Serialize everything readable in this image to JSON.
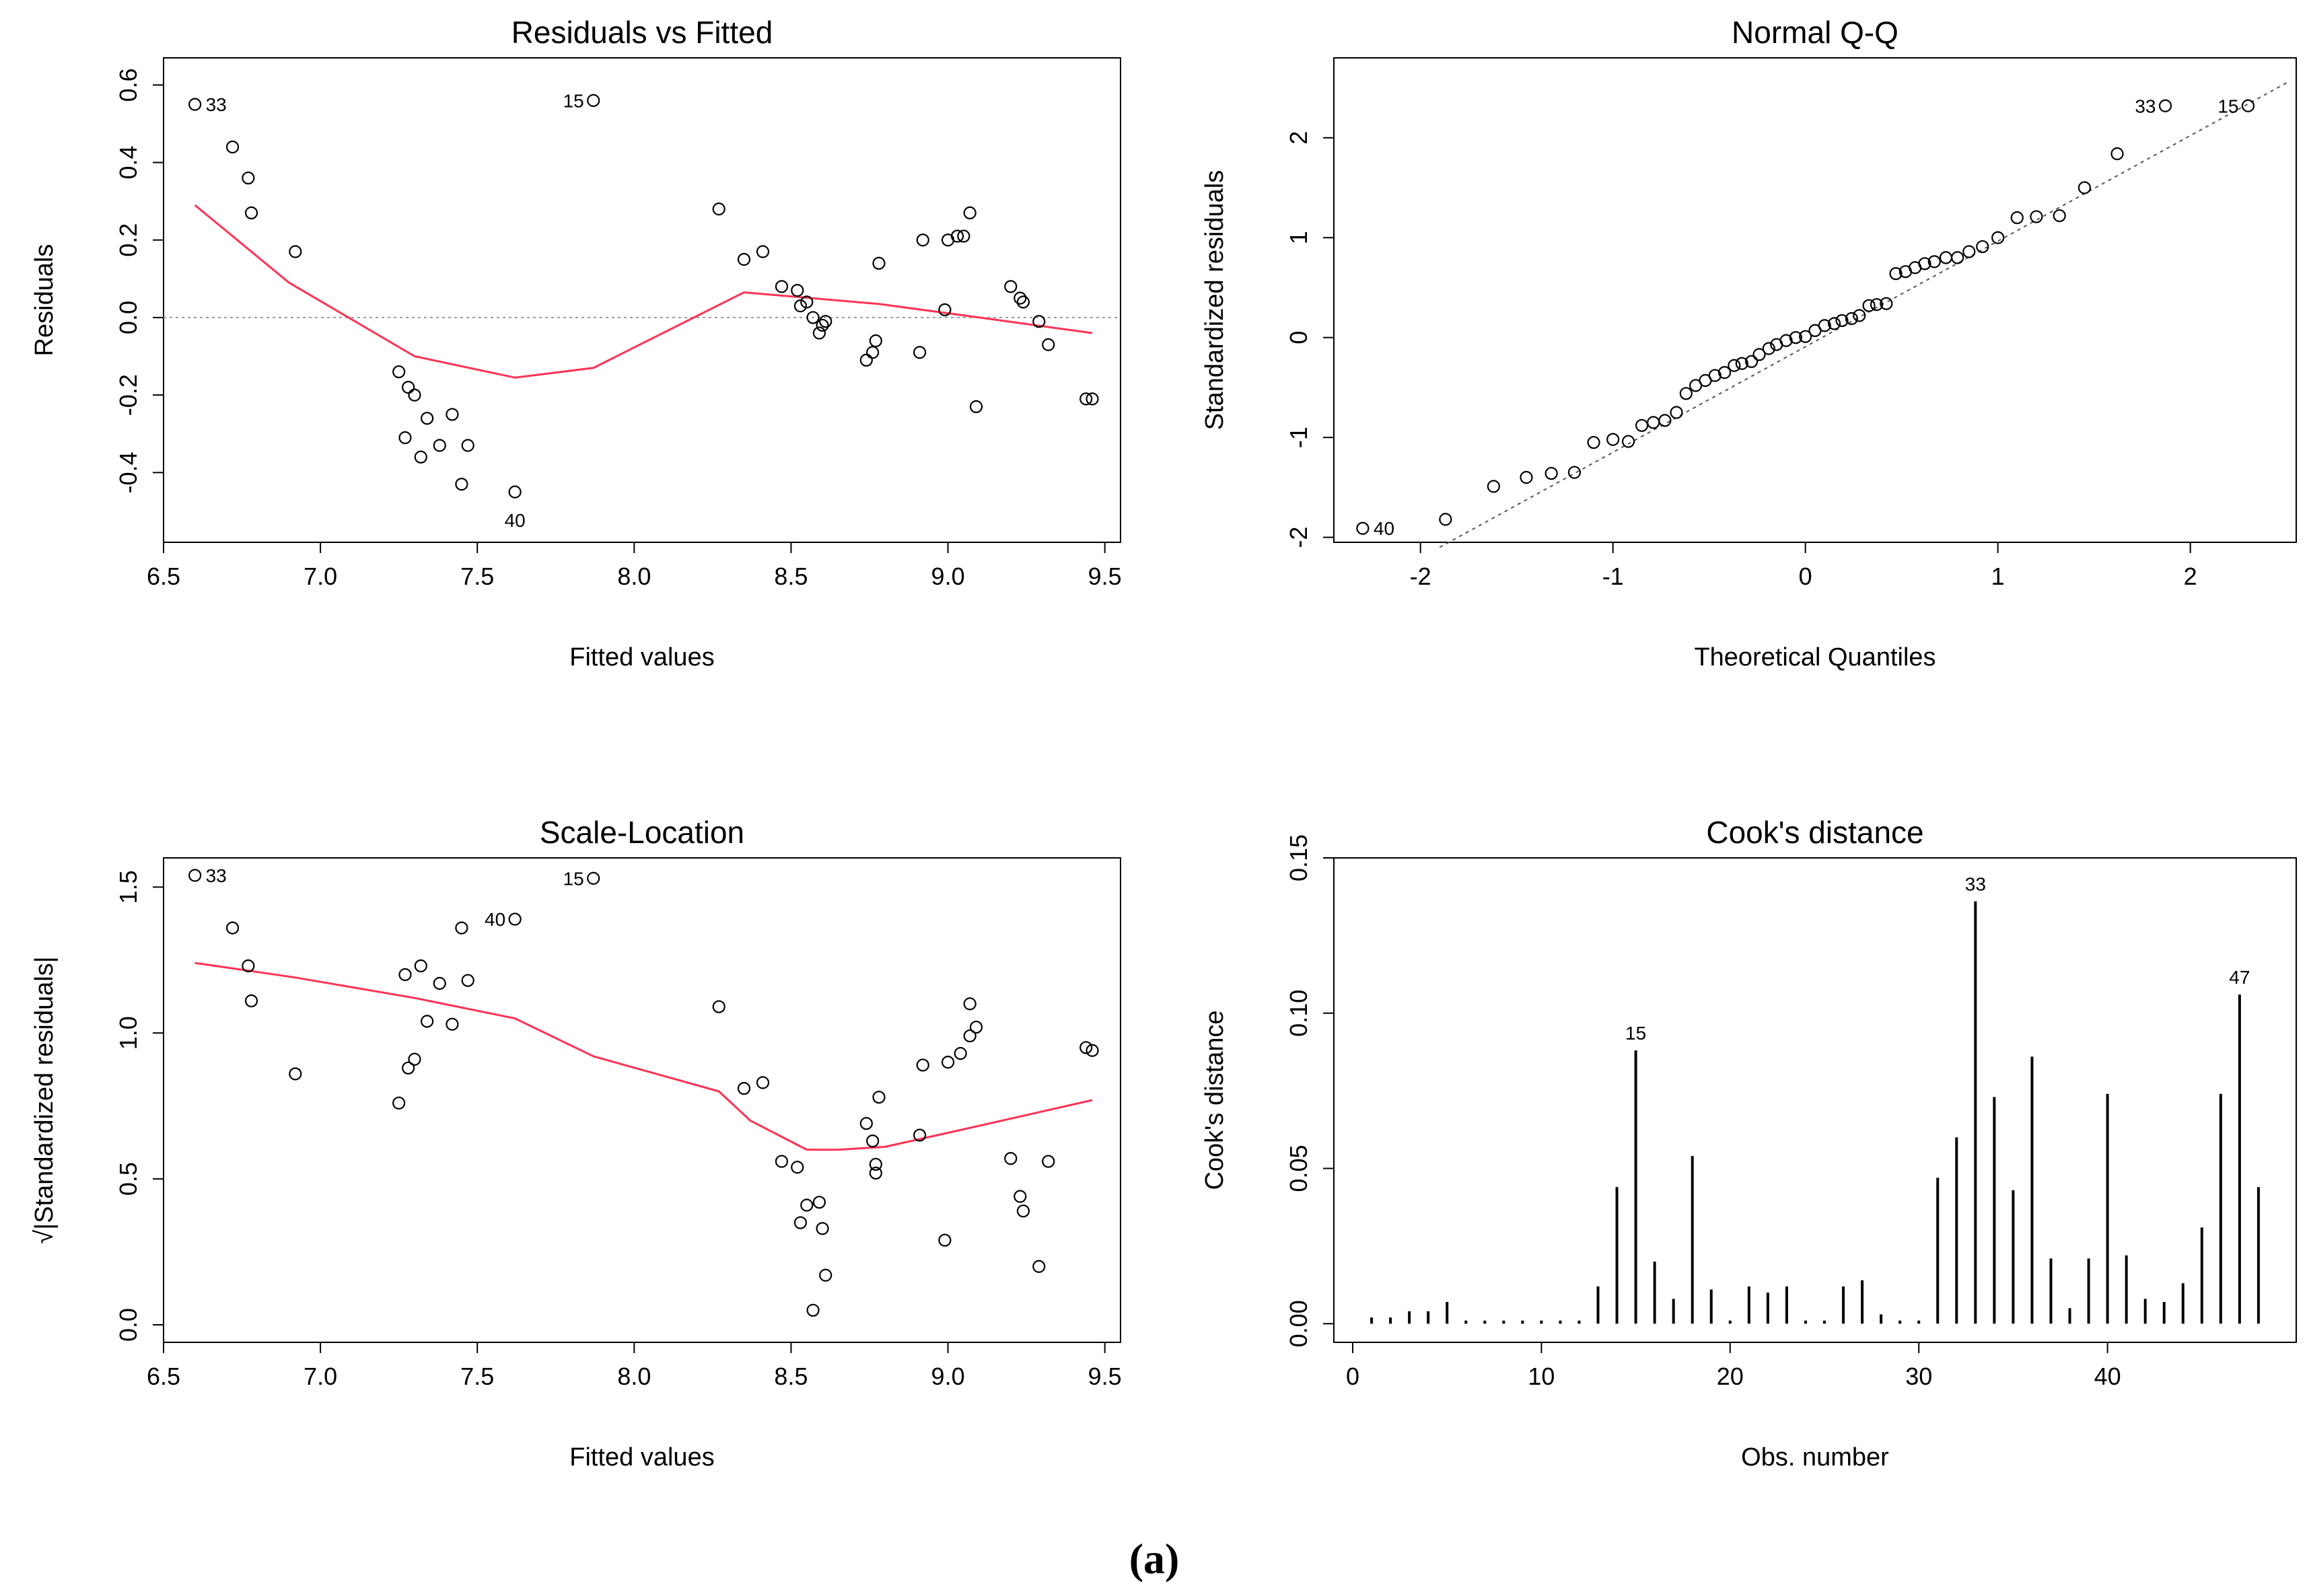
{
  "caption": "(a)",
  "chart_data": [
    {
      "type": "scatter",
      "title": "Residuals vs Fitted",
      "xlabel": "Fitted values",
      "ylabel": "Residuals",
      "xlim": [
        6.5,
        9.55
      ],
      "ylim": [
        -0.58,
        0.67
      ],
      "xticks": [
        6.5,
        7.0,
        7.5,
        8.0,
        8.5,
        9.0,
        9.5
      ],
      "xtick_labels": [
        "6.5",
        "7.0",
        "7.5",
        "8.0",
        "8.5",
        "9.0",
        "9.5"
      ],
      "yticks": [
        -0.4,
        -0.2,
        0.0,
        0.2,
        0.4,
        0.6
      ],
      "ytick_labels": [
        "-0.4",
        "-0.2",
        "0.0",
        "0.2",
        "0.4",
        "0.6"
      ],
      "reference_line": {
        "y": 0,
        "style": "dotted",
        "color": "#999999"
      },
      "points": [
        [
          6.6,
          0.55
        ],
        [
          6.72,
          0.44
        ],
        [
          6.77,
          0.36
        ],
        [
          6.78,
          0.27
        ],
        [
          6.92,
          0.17
        ],
        [
          7.25,
          -0.14
        ],
        [
          7.27,
          -0.31
        ],
        [
          7.28,
          -0.18
        ],
        [
          7.3,
          -0.2
        ],
        [
          7.32,
          -0.36
        ],
        [
          7.34,
          -0.26
        ],
        [
          7.38,
          -0.33
        ],
        [
          7.42,
          -0.25
        ],
        [
          7.45,
          -0.43
        ],
        [
          7.47,
          -0.33
        ],
        [
          7.62,
          -0.45
        ],
        [
          7.87,
          0.56
        ],
        [
          8.27,
          0.28
        ],
        [
          8.35,
          0.15
        ],
        [
          8.41,
          0.17
        ],
        [
          8.47,
          0.08
        ],
        [
          8.52,
          0.07
        ],
        [
          8.53,
          0.03
        ],
        [
          8.55,
          0.04
        ],
        [
          8.57,
          0.0
        ],
        [
          8.59,
          -0.04
        ],
        [
          8.6,
          -0.02
        ],
        [
          8.61,
          -0.01
        ],
        [
          8.74,
          -0.11
        ],
        [
          8.76,
          -0.09
        ],
        [
          8.77,
          -0.06
        ],
        [
          8.78,
          0.14
        ],
        [
          8.91,
          -0.09
        ],
        [
          8.92,
          0.2
        ],
        [
          8.99,
          0.02
        ],
        [
          9.0,
          0.2
        ],
        [
          9.03,
          0.21
        ],
        [
          9.05,
          0.21
        ],
        [
          9.07,
          0.27
        ],
        [
          9.09,
          -0.23
        ],
        [
          9.2,
          0.08
        ],
        [
          9.23,
          0.05
        ],
        [
          9.24,
          0.04
        ],
        [
          9.29,
          -0.01
        ],
        [
          9.32,
          -0.07
        ],
        [
          9.44,
          -0.21
        ],
        [
          9.46,
          -0.21
        ]
      ],
      "smoother": {
        "color": "#ff3355",
        "points": [
          [
            6.6,
            0.29
          ],
          [
            6.9,
            0.09
          ],
          [
            7.3,
            -0.1
          ],
          [
            7.62,
            -0.155
          ],
          [
            7.87,
            -0.13
          ],
          [
            8.35,
            0.065
          ],
          [
            8.78,
            0.035
          ],
          [
            9.1,
            0.0
          ],
          [
            9.46,
            -0.04
          ]
        ]
      },
      "annotations": [
        {
          "text": "33",
          "x": 6.6,
          "y": 0.55,
          "pos": "right"
        },
        {
          "text": "15",
          "x": 7.87,
          "y": 0.56,
          "pos": "left"
        },
        {
          "text": "40",
          "x": 7.62,
          "y": -0.45,
          "pos": "below"
        }
      ]
    },
    {
      "type": "scatter",
      "title": "Normal Q-Q",
      "xlabel": "Theoretical Quantiles",
      "ylabel": "Standardized residuals",
      "xlim": [
        -2.45,
        2.55
      ],
      "ylim": [
        -2.05,
        2.8
      ],
      "xticks": [
        -2,
        -1,
        0,
        1,
        2
      ],
      "xtick_labels": [
        "-2",
        "-1",
        "0",
        "1",
        "2"
      ],
      "yticks": [
        -2,
        -1,
        0,
        1,
        2
      ],
      "ytick_labels": [
        "-2",
        "-1",
        "0",
        "1",
        "2"
      ],
      "reference_line": {
        "x1": -1.9,
        "y1": -2.1,
        "x2": 2.5,
        "y2": 2.55,
        "style": "dotted",
        "color": "#555555"
      },
      "points": [
        [
          -2.3,
          -1.91
        ],
        [
          -1.87,
          -1.82
        ],
        [
          -1.62,
          -1.49
        ],
        [
          -1.45,
          -1.4
        ],
        [
          -1.32,
          -1.36
        ],
        [
          -1.2,
          -1.35
        ],
        [
          -1.1,
          -1.05
        ],
        [
          -1.0,
          -1.02
        ],
        [
          -0.92,
          -1.04
        ],
        [
          -0.85,
          -0.88
        ],
        [
          -0.79,
          -0.85
        ],
        [
          -0.73,
          -0.83
        ],
        [
          -0.67,
          -0.75
        ],
        [
          -0.62,
          -0.56
        ],
        [
          -0.57,
          -0.48
        ],
        [
          -0.52,
          -0.43
        ],
        [
          -0.47,
          -0.38
        ],
        [
          -0.42,
          -0.35
        ],
        [
          -0.37,
          -0.28
        ],
        [
          -0.33,
          -0.26
        ],
        [
          -0.28,
          -0.24
        ],
        [
          -0.24,
          -0.17
        ],
        [
          -0.19,
          -0.11
        ],
        [
          -0.15,
          -0.07
        ],
        [
          -0.1,
          -0.03
        ],
        [
          -0.05,
          0.0
        ],
        [
          0.0,
          0.01
        ],
        [
          0.05,
          0.07
        ],
        [
          0.1,
          0.12
        ],
        [
          0.15,
          0.14
        ],
        [
          0.19,
          0.17
        ],
        [
          0.24,
          0.19
        ],
        [
          0.28,
          0.22
        ],
        [
          0.33,
          0.32
        ],
        [
          0.37,
          0.33
        ],
        [
          0.42,
          0.34
        ],
        [
          0.47,
          0.64
        ],
        [
          0.52,
          0.66
        ],
        [
          0.57,
          0.7
        ],
        [
          0.62,
          0.74
        ],
        [
          0.67,
          0.76
        ],
        [
          0.73,
          0.8
        ],
        [
          0.79,
          0.8
        ],
        [
          0.85,
          0.86
        ],
        [
          0.92,
          0.91
        ],
        [
          1.0,
          1.0
        ],
        [
          1.1,
          1.2
        ],
        [
          1.2,
          1.21
        ],
        [
          1.32,
          1.22
        ],
        [
          1.45,
          1.5
        ],
        [
          1.62,
          1.84
        ],
        [
          1.87,
          2.32
        ],
        [
          2.3,
          2.32
        ]
      ],
      "annotations": [
        {
          "text": "40",
          "x": -2.3,
          "y": -1.91,
          "pos": "right"
        },
        {
          "text": "33",
          "x": 1.87,
          "y": 2.32,
          "pos": "left"
        },
        {
          "text": "15",
          "x": 2.3,
          "y": 2.32,
          "pos": "left"
        }
      ]
    },
    {
      "type": "scatter",
      "title": "Scale-Location",
      "xlabel": "Fitted values",
      "ylabel": "√|Standardized residuals|",
      "xlim": [
        6.5,
        9.55
      ],
      "ylim": [
        -0.06,
        1.6
      ],
      "xticks": [
        6.5,
        7.0,
        7.5,
        8.0,
        8.5,
        9.0,
        9.5
      ],
      "xtick_labels": [
        "6.5",
        "7.0",
        "7.5",
        "8.0",
        "8.5",
        "9.0",
        "9.5"
      ],
      "yticks": [
        0.0,
        0.5,
        1.0,
        1.5
      ],
      "ytick_labels": [
        "0.0",
        "0.5",
        "1.0",
        "1.5"
      ],
      "points": [
        [
          6.6,
          1.54
        ],
        [
          6.72,
          1.36
        ],
        [
          6.77,
          1.23
        ],
        [
          6.78,
          1.11
        ],
        [
          6.92,
          0.86
        ],
        [
          7.25,
          0.76
        ],
        [
          7.27,
          1.2
        ],
        [
          7.28,
          0.88
        ],
        [
          7.3,
          0.91
        ],
        [
          7.32,
          1.23
        ],
        [
          7.34,
          1.04
        ],
        [
          7.38,
          1.17
        ],
        [
          7.42,
          1.03
        ],
        [
          7.45,
          1.36
        ],
        [
          7.47,
          1.18
        ],
        [
          7.62,
          1.39
        ],
        [
          7.87,
          1.53
        ],
        [
          8.27,
          1.09
        ],
        [
          8.35,
          0.81
        ],
        [
          8.41,
          0.83
        ],
        [
          8.47,
          0.56
        ],
        [
          8.52,
          0.54
        ],
        [
          8.53,
          0.35
        ],
        [
          8.55,
          0.41
        ],
        [
          8.57,
          0.05
        ],
        [
          8.59,
          0.42
        ],
        [
          8.6,
          0.33
        ],
        [
          8.61,
          0.17
        ],
        [
          8.74,
          0.69
        ],
        [
          8.76,
          0.63
        ],
        [
          8.77,
          0.55
        ],
        [
          8.77,
          0.52
        ],
        [
          8.78,
          0.78
        ],
        [
          8.91,
          0.65
        ],
        [
          8.92,
          0.89
        ],
        [
          8.99,
          0.29
        ],
        [
          9.0,
          0.9
        ],
        [
          9.04,
          0.93
        ],
        [
          9.07,
          1.1
        ],
        [
          9.07,
          0.99
        ],
        [
          9.09,
          1.02
        ],
        [
          9.2,
          0.57
        ],
        [
          9.23,
          0.44
        ],
        [
          9.24,
          0.39
        ],
        [
          9.29,
          0.2
        ],
        [
          9.32,
          0.56
        ],
        [
          9.44,
          0.95
        ],
        [
          9.46,
          0.94
        ]
      ],
      "smoother": {
        "color": "#ff3355",
        "points": [
          [
            6.6,
            1.24
          ],
          [
            6.92,
            1.19
          ],
          [
            7.3,
            1.12
          ],
          [
            7.62,
            1.05
          ],
          [
            7.87,
            0.92
          ],
          [
            8.27,
            0.8
          ],
          [
            8.37,
            0.7
          ],
          [
            8.55,
            0.6
          ],
          [
            8.65,
            0.6
          ],
          [
            8.8,
            0.61
          ],
          [
            9.05,
            0.67
          ],
          [
            9.46,
            0.77
          ]
        ]
      },
      "annotations": [
        {
          "text": "33",
          "x": 6.6,
          "y": 1.54,
          "pos": "right"
        },
        {
          "text": "40",
          "x": 7.62,
          "y": 1.39,
          "pos": "left"
        },
        {
          "text": "15",
          "x": 7.87,
          "y": 1.53,
          "pos": "left"
        }
      ]
    },
    {
      "type": "bar",
      "title": "Cook's distance",
      "xlabel": "Obs. number",
      "ylabel": "Cook's distance",
      "xlim": [
        -1,
        50
      ],
      "ylim": [
        -0.006,
        0.15
      ],
      "xticks": [
        0,
        10,
        20,
        30,
        40
      ],
      "xtick_labels": [
        "0",
        "10",
        "20",
        "30",
        "40"
      ],
      "yticks": [
        0.0,
        0.05,
        0.1,
        0.15
      ],
      "ytick_labels": [
        "0.00",
        "0.05",
        "0.10",
        "0.15"
      ],
      "x": [
        1,
        2,
        3,
        4,
        5,
        6,
        7,
        8,
        9,
        10,
        11,
        12,
        13,
        14,
        15,
        16,
        17,
        18,
        19,
        20,
        21,
        22,
        23,
        24,
        25,
        26,
        27,
        28,
        29,
        30,
        31,
        32,
        33,
        34,
        35,
        36,
        37,
        38,
        39,
        40,
        41,
        42,
        43,
        44,
        45,
        46,
        47,
        48
      ],
      "values": [
        0.002,
        0.002,
        0.004,
        0.004,
        0.007,
        0.001,
        0.001,
        0.001,
        0.001,
        0.001,
        0.001,
        0.001,
        0.012,
        0.044,
        0.088,
        0.02,
        0.008,
        0.054,
        0.011,
        0.001,
        0.012,
        0.01,
        0.012,
        0.001,
        0.001,
        0.012,
        0.014,
        0.003,
        0.001,
        0.001,
        0.047,
        0.06,
        0.136,
        0.073,
        0.043,
        0.086,
        0.021,
        0.005,
        0.021,
        0.074,
        0.022,
        0.008,
        0.007,
        0.013,
        0.031,
        0.074,
        0.106,
        0.044
      ],
      "annotations": [
        {
          "text": "15",
          "x": 15,
          "y": 0.088,
          "pos": "above"
        },
        {
          "text": "33",
          "x": 33,
          "y": 0.136,
          "pos": "above"
        },
        {
          "text": "47",
          "x": 47,
          "y": 0.106,
          "pos": "above"
        }
      ]
    }
  ]
}
